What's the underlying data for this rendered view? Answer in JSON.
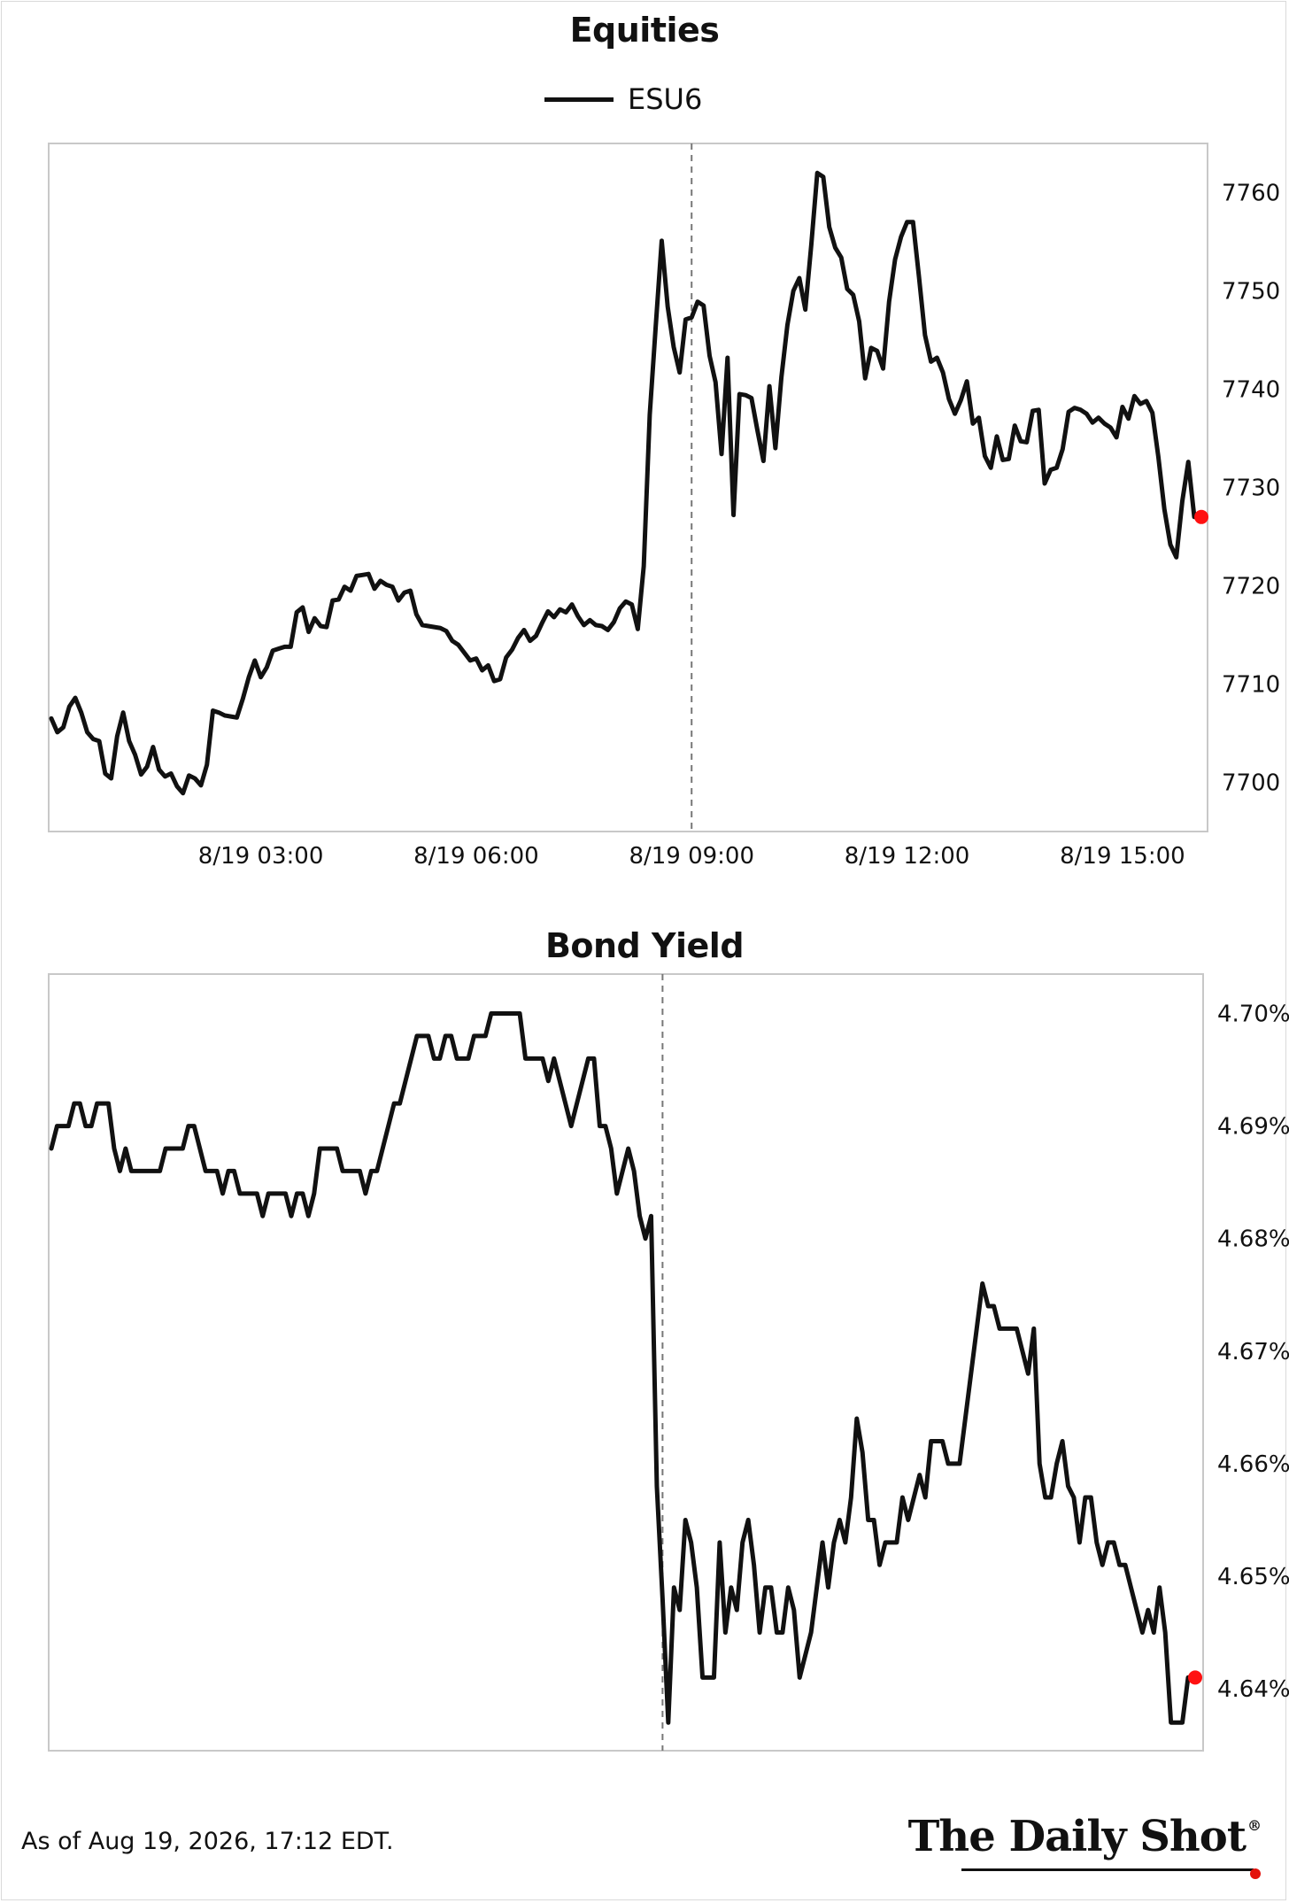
{
  "colors": {
    "line": "#111111",
    "marker": "#ff1111",
    "box": "#c8c8c8",
    "vline": "#777777"
  },
  "footer": {
    "note": "As of Aug 19, 2026, 17:12 EDT.",
    "logo": "The Daily Shot",
    "logo_mark": "®"
  },
  "chart_data": [
    {
      "type": "line",
      "title": "Equities",
      "legend": "top-center",
      "xlabel": "",
      "ylabel": "",
      "x_ticks": [
        "8/19 03:00",
        "8/19 06:00",
        "8/19 09:00",
        "8/19 12:00",
        "8/19 15:00"
      ],
      "y_ticks": [
        "7700",
        "7710",
        "7720",
        "7730",
        "7740",
        "7750",
        "7760"
      ],
      "ylim": [
        7695,
        7765
      ],
      "vertical_marker_time": "8/19 09:00",
      "last_point_marker": true,
      "series": [
        {
          "name": "ESU6",
          "step_minutes": 5,
          "start_time": "8/19 00:05",
          "values": [
            7706.5,
            7705.1,
            7705.6,
            7707.7,
            7708.6,
            7707.1,
            7705.1,
            7704.4,
            7704.2,
            7700.9,
            7700.4,
            7704.7,
            7707.1,
            7704.2,
            7702.8,
            7700.8,
            7701.6,
            7703.6,
            7701.3,
            7700.6,
            7700.9,
            7699.6,
            7698.9,
            7700.7,
            7700.4,
            7699.7,
            7701.8,
            7707.3,
            7707.1,
            7706.8,
            7706.7,
            7706.6,
            7708.5,
            7710.7,
            7712.4,
            7710.7,
            7711.7,
            7713.4,
            7713.6,
            7713.8,
            7713.8,
            7717.3,
            7717.8,
            7715.3,
            7716.7,
            7715.9,
            7715.8,
            7718.5,
            7718.6,
            7719.9,
            7719.5,
            7721.0,
            7721.1,
            7721.2,
            7719.7,
            7720.5,
            7720.1,
            7719.9,
            7718.5,
            7719.3,
            7719.5,
            7717.1,
            7716.0,
            7715.9,
            7715.8,
            7715.7,
            7715.4,
            7714.4,
            7714.0,
            7713.2,
            7712.4,
            7712.6,
            7711.4,
            7711.9,
            7710.3,
            7710.5,
            7712.7,
            7713.5,
            7714.7,
            7715.5,
            7714.4,
            7714.9,
            7716.2,
            7717.4,
            7716.8,
            7717.6,
            7717.3,
            7718.1,
            7716.9,
            7716.0,
            7716.5,
            7716.0,
            7715.9,
            7715.5,
            7716.3,
            7717.7,
            7718.4,
            7718.1,
            7715.6,
            7722.0,
            7737.4,
            7746.4,
            7755.1,
            7748.4,
            7744.3,
            7741.7,
            7747.1,
            7747.3,
            7748.9,
            7748.5,
            7743.4,
            7740.7,
            7733.4,
            7743.2,
            7727.2,
            7739.5,
            7739.4,
            7739.1,
            7735.8,
            7732.7,
            7740.3,
            7734.0,
            7741.2,
            7746.5,
            7750.0,
            7751.3,
            7748.1,
            7754.7,
            7762.0,
            7761.6,
            7756.5,
            7754.4,
            7753.4,
            7750.2,
            7749.6,
            7746.9,
            7741.1,
            7744.2,
            7743.9,
            7742.1,
            7748.9,
            7753.2,
            7755.5,
            7757.0,
            7757.0,
            7751.4,
            7745.5,
            7742.8,
            7743.2,
            7741.7,
            7739.0,
            7737.5,
            7738.9,
            7740.8,
            7736.5,
            7737.1,
            7733.2,
            7732.0,
            7735.2,
            7732.8,
            7732.9,
            7736.3,
            7734.7,
            7734.6,
            7737.8,
            7737.9,
            7730.4,
            7731.8,
            7732.0,
            7733.9,
            7737.7,
            7738.1,
            7737.9,
            7737.5,
            7736.6,
            7737.1,
            7736.5,
            7736.1,
            7735.1,
            7738.2,
            7737.0,
            7739.3,
            7738.5,
            7738.8,
            7737.6,
            7733.1,
            7727.8,
            7724.2,
            7722.9,
            7728.6,
            7732.6,
            7727.0
          ]
        }
      ]
    },
    {
      "type": "line",
      "title": "Bond Yield",
      "xlabel": "",
      "ylabel": "",
      "y_ticks": [
        "4.64%",
        "4.65%",
        "4.66%",
        "4.67%",
        "4.68%",
        "4.69%",
        "4.70%"
      ],
      "ylim": [
        4.6345,
        4.7035
      ],
      "vertical_marker_time": "8/19 09:00",
      "last_point_marker": true,
      "series": [
        {
          "step_minutes": 5,
          "start_time": "8/19 00:05",
          "values": [
            4.688,
            4.69,
            4.69,
            4.69,
            4.692,
            4.692,
            4.69,
            4.69,
            4.692,
            4.692,
            4.692,
            4.688,
            4.686,
            4.688,
            4.686,
            4.686,
            4.686,
            4.686,
            4.686,
            4.686,
            4.688,
            4.688,
            4.688,
            4.688,
            4.69,
            4.69,
            4.688,
            4.686,
            4.686,
            4.686,
            4.684,
            4.686,
            4.686,
            4.684,
            4.684,
            4.684,
            4.684,
            4.682,
            4.684,
            4.684,
            4.684,
            4.684,
            4.682,
            4.684,
            4.684,
            4.682,
            4.684,
            4.688,
            4.688,
            4.688,
            4.688,
            4.686,
            4.686,
            4.686,
            4.686,
            4.684,
            4.686,
            4.686,
            4.688,
            4.69,
            4.692,
            4.692,
            4.694,
            4.696,
            4.698,
            4.698,
            4.698,
            4.696,
            4.696,
            4.698,
            4.698,
            4.696,
            4.696,
            4.696,
            4.698,
            4.698,
            4.698,
            4.7,
            4.7,
            4.7,
            4.7,
            4.7,
            4.7,
            4.696,
            4.696,
            4.696,
            4.696,
            4.694,
            4.696,
            4.694,
            4.692,
            4.69,
            4.692,
            4.694,
            4.696,
            4.696,
            4.69,
            4.69,
            4.688,
            4.684,
            4.686,
            4.688,
            4.686,
            4.682,
            4.68,
            4.682,
            4.658,
            4.648,
            4.637,
            4.649,
            4.647,
            4.655,
            4.653,
            4.649,
            4.641,
            4.641,
            4.641,
            4.653,
            4.645,
            4.649,
            4.647,
            4.653,
            4.655,
            4.651,
            4.645,
            4.649,
            4.649,
            4.645,
            4.645,
            4.649,
            4.647,
            4.641,
            4.643,
            4.645,
            4.649,
            4.653,
            4.649,
            4.653,
            4.655,
            4.653,
            4.657,
            4.664,
            4.661,
            4.655,
            4.655,
            4.651,
            4.653,
            4.653,
            4.653,
            4.657,
            4.655,
            4.657,
            4.659,
            4.657,
            4.662,
            4.662,
            4.662,
            4.66,
            4.66,
            4.66,
            4.664,
            4.668,
            4.672,
            4.676,
            4.674,
            4.674,
            4.672,
            4.672,
            4.672,
            4.672,
            4.67,
            4.668,
            4.672,
            4.66,
            4.657,
            4.657,
            4.66,
            4.662,
            4.658,
            4.657,
            4.653,
            4.657,
            4.657,
            4.653,
            4.651,
            4.653,
            4.653,
            4.651,
            4.651,
            4.649,
            4.647,
            4.645,
            4.647,
            4.645,
            4.649,
            4.645,
            4.637,
            4.637,
            4.637,
            4.641
          ]
        }
      ]
    }
  ]
}
